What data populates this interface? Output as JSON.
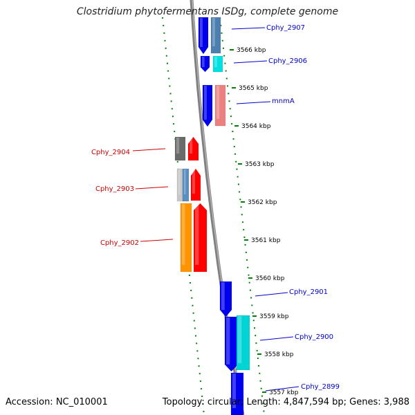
{
  "title": "Clostridium phytofermentans ISDg, complete genome",
  "accession_text": "Accession: NC_010001",
  "summary_text": "Topology: circular; Length: 4,847,594 bp; Genes: 3,988",
  "colors": {
    "forward_gene": "#0000ff",
    "reverse_gene": "#ff0000",
    "backbone": "#808080",
    "gc_ticks": "#008000",
    "forward_label": "#0000cc",
    "reverse_label": "#cc0000"
  },
  "ruler": [
    "3566 kbp",
    "3565 kbp",
    "3564 kbp",
    "3563 kbp",
    "3562 kbp",
    "3561 kbp",
    "3560 kbp",
    "3559 kbp",
    "3558 kbp",
    "3557 kbp"
  ],
  "genes": [
    {
      "name": "Cphy_2907",
      "strand": "forward"
    },
    {
      "name": "Cphy_2906",
      "strand": "forward"
    },
    {
      "name": "mnmA",
      "strand": "forward"
    },
    {
      "name": "Cphy_2904",
      "strand": "reverse"
    },
    {
      "name": "Cphy_2903",
      "strand": "reverse"
    },
    {
      "name": "Cphy_2902",
      "strand": "reverse"
    },
    {
      "name": "Cphy_2901",
      "strand": "forward"
    },
    {
      "name": "Cphy_2900",
      "strand": "forward"
    },
    {
      "name": "Cphy_2899",
      "strand": "forward"
    }
  ]
}
